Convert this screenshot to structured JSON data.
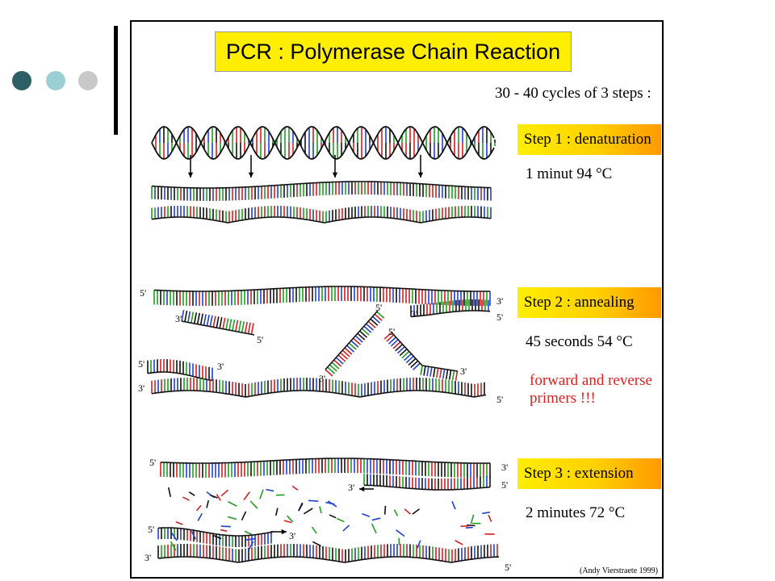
{
  "theme": {
    "dot_colors": [
      "#2e5f64",
      "#9ccfd3",
      "#c8c8c8"
    ],
    "base_colors": [
      "#d22020",
      "#1f9e1f",
      "#2040d0",
      "#111111"
    ]
  },
  "figure": {
    "title": "PCR : Polymerase Chain Reaction",
    "subtitle": "30 - 40 cycles of 3 steps :",
    "steps": [
      {
        "label": "Step 1 : denaturation",
        "condition": "1 minut 94 °C"
      },
      {
        "label": "Step 2 : annealing",
        "condition": "45 seconds 54 °C"
      },
      {
        "label": "Step 3 : extension",
        "condition": "2 minutes 72 °C"
      }
    ],
    "note_lines": [
      "forward and reverse",
      "primers !!!"
    ],
    "credit": "(Andy Vierstraete 1999)",
    "end_5": "5'",
    "end_3": "3'"
  }
}
